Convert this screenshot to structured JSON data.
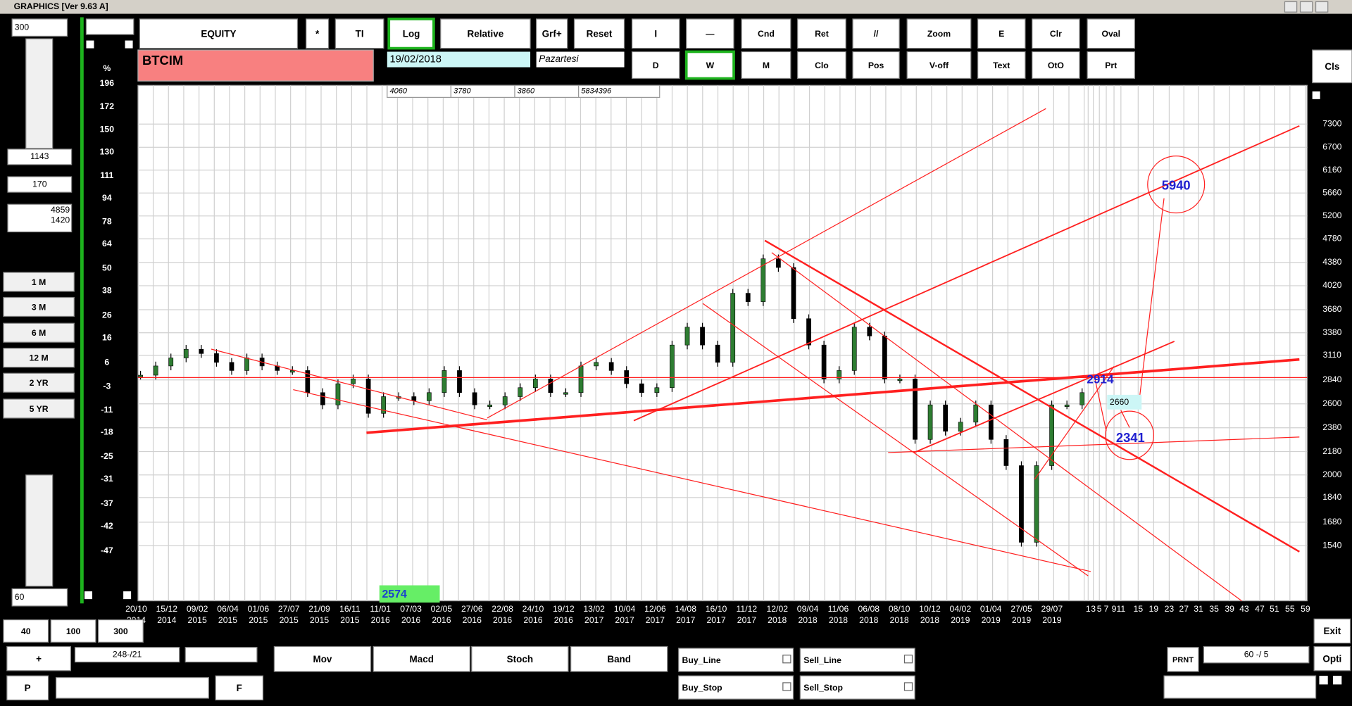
{
  "title_bar": "GRAPHICS  [Ver 9.63 A]",
  "left_panel": {
    "top_input": "300",
    "box1": "1143",
    "box2": "170",
    "box3": [
      "4859",
      "1420"
    ],
    "periods": [
      "1 M",
      "3 M",
      "6 M",
      "12 M",
      "2 YR",
      "5 YR"
    ],
    "bottom_input": "60"
  },
  "toolbar": {
    "row1": [
      {
        "label": "EQUITY"
      },
      {
        "label": "*"
      },
      {
        "label": "TI"
      },
      {
        "label": "Log",
        "selected": true
      },
      {
        "label": "Relative"
      },
      {
        "label": "Grf+"
      },
      {
        "label": "Reset"
      },
      {
        "label": "I"
      },
      {
        "label": "—"
      },
      {
        "label": "Cnd"
      },
      {
        "label": "Ret"
      },
      {
        "label": "//"
      },
      {
        "label": "Zoom"
      },
      {
        "label": "E"
      },
      {
        "label": "Clr"
      },
      {
        "label": "Oval"
      }
    ],
    "row2": [
      {
        "label": "D"
      },
      {
        "label": "W",
        "selected": true
      },
      {
        "label": "M"
      },
      {
        "label": "Clo"
      },
      {
        "label": "Pos"
      },
      {
        "label": "V-off"
      },
      {
        "label": "Text"
      },
      {
        "label": "OtO"
      },
      {
        "label": "Prt"
      }
    ],
    "close": "Cls"
  },
  "symbol": "BTCIM",
  "date": "19/02/2018",
  "day": "Pazartesi",
  "stats": [
    "4060",
    "3780",
    "3860",
    "5834396"
  ],
  "chart": {
    "type": "bar",
    "log": true,
    "grid": true,
    "percent_label": "%",
    "percent_ticks": [
      196,
      172,
      150,
      130,
      111,
      94,
      78,
      64,
      50,
      38,
      26,
      16,
      6,
      -3,
      -11,
      -18,
      -25,
      -31,
      -37,
      -42,
      -47
    ],
    "ylim": [
      1257,
      8420
    ],
    "yticks": [
      7300,
      6700,
      6160,
      5660,
      5200,
      4780,
      4380,
      4020,
      3680,
      3380,
      3110,
      2840,
      2600,
      2380,
      2180,
      2000,
      1840,
      1680,
      1540
    ],
    "dates": [
      [
        "20/10",
        "2014"
      ],
      [
        "15/12",
        "2014"
      ],
      [
        "09/02",
        "2015"
      ],
      [
        "06/04",
        "2015"
      ],
      [
        "01/06",
        "2015"
      ],
      [
        "27/07",
        "2015"
      ],
      [
        "21/09",
        "2015"
      ],
      [
        "16/11",
        "2015"
      ],
      [
        "11/01",
        "2016"
      ],
      [
        "07/03",
        "2016"
      ],
      [
        "02/05",
        "2016"
      ],
      [
        "27/06",
        "2016"
      ],
      [
        "22/08",
        "2016"
      ],
      [
        "24/10",
        "2016"
      ],
      [
        "19/12",
        "2016"
      ],
      [
        "13/02",
        "2017"
      ],
      [
        "10/04",
        "2017"
      ],
      [
        "12/06",
        "2017"
      ],
      [
        "14/08",
        "2017"
      ],
      [
        "16/10",
        "2017"
      ],
      [
        "11/12",
        "2017"
      ],
      [
        "12/02",
        "2018"
      ],
      [
        "09/04",
        "2018"
      ],
      [
        "11/06",
        "2018"
      ],
      [
        "06/08",
        "2018"
      ],
      [
        "08/10",
        "2018"
      ],
      [
        "10/12",
        "2018"
      ],
      [
        "04/02",
        "2019"
      ],
      [
        "01/04",
        "2019"
      ],
      [
        "27/05",
        "2019"
      ],
      [
        "29/07",
        "2019"
      ]
    ],
    "day_ticks": [
      1,
      3,
      5,
      7,
      9,
      11,
      15,
      19,
      23,
      27,
      31,
      35,
      39,
      43,
      47,
      51,
      55,
      59
    ],
    "up_color": "#2e7d32",
    "down_color": "#000000",
    "values": [
      2890,
      2990,
      3080,
      3180,
      3130,
      3030,
      2940,
      3080,
      2990,
      2940,
      2940,
      2710,
      2590,
      2800,
      2850,
      2510,
      2670,
      2670,
      2630,
      2710,
      2940,
      2710,
      2590,
      2590,
      2670,
      2760,
      2850,
      2710,
      2710,
      2990,
      3030,
      2940,
      2800,
      2710,
      2760,
      3230,
      3450,
      3230,
      3030,
      3910,
      3790,
      4440,
      4300,
      3560,
      3230,
      2850,
      2940,
      3450,
      3340,
      2850,
      2850,
      2280,
      2590,
      2350,
      2430,
      2590,
      2280,
      2070,
      1560,
      2070,
      2590,
      2590,
      2710
    ],
    "annotations": {
      "target": "5940",
      "level": "2914",
      "box": "2660",
      "support": "2341"
    },
    "marker": "2574"
  },
  "bottom": {
    "zoom": [
      "40",
      "100",
      "300"
    ],
    "plus": "+",
    "range": "248-/21",
    "p": "P",
    "f": "F",
    "indicators": [
      "Mov",
      "Macd",
      "Stoch",
      "Band"
    ],
    "orders": [
      "Buy_Line",
      "Buy_Stop",
      "Sell_Line",
      "Sell_Stop"
    ],
    "prnt": "PRNT",
    "period": "60  -/  5",
    "exit": "Exit",
    "opti": "Opti"
  }
}
